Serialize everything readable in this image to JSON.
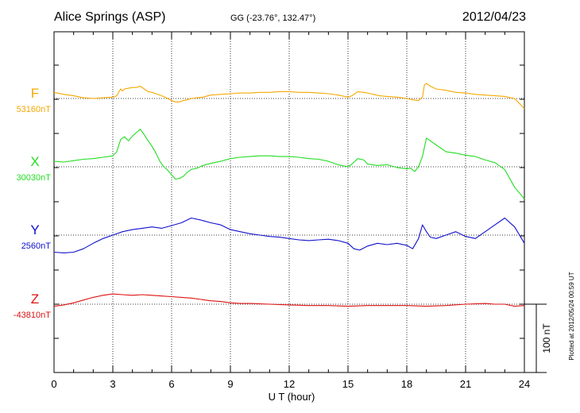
{
  "header": {
    "station": "Alice Springs (ASP)",
    "coords": "GG (-23.76°, 132.47°)",
    "date": "2012/04/23"
  },
  "side_note": "Plotted at 2012/05/24 00:59 UT",
  "scale_label": "100 nT",
  "chart_data": {
    "type": "line",
    "xlabel": "U T (hour)",
    "xlim": [
      0,
      24
    ],
    "x_ticks": [
      0,
      3,
      6,
      9,
      12,
      15,
      18,
      21,
      24
    ],
    "grid": true,
    "scale_bar_nT": 100,
    "series": [
      {
        "name": "F",
        "baseline_label": "53160nT",
        "baseline_nT": 53160,
        "color": "#f5a800",
        "x": [
          0,
          0.5,
          1,
          1.5,
          2,
          2.5,
          3,
          3.2,
          3.4,
          3.5,
          3.6,
          3.8,
          4,
          4.2,
          4.4,
          4.6,
          4.8,
          5,
          5.2,
          5.5,
          5.8,
          6,
          6.2,
          6.4,
          6.6,
          6.8,
          7,
          7.3,
          7.6,
          8,
          8.5,
          9,
          9.5,
          10,
          10.5,
          11,
          11.5,
          12,
          12.5,
          13,
          13.5,
          14,
          14.5,
          15,
          15.2,
          15.5,
          15.8,
          16,
          16.3,
          16.6,
          17,
          17.5,
          18,
          18.3,
          18.6,
          18.8,
          18.9,
          19,
          19.2,
          19.5,
          20,
          20.5,
          21,
          21.5,
          22,
          22.5,
          23,
          23.5,
          24
        ],
        "values": [
          9,
          6,
          4,
          1,
          0,
          1,
          2,
          4,
          14,
          11,
          14,
          15,
          16,
          16,
          18,
          14,
          10,
          9,
          7,
          4,
          0,
          -3,
          -5,
          -5,
          -3,
          -2,
          0,
          1,
          2,
          5,
          6,
          7,
          8,
          8,
          9,
          9,
          10,
          10,
          9,
          9,
          8,
          7,
          5,
          2,
          4,
          10,
          9,
          8,
          6,
          4,
          3,
          2,
          0,
          -2,
          -3,
          2,
          20,
          22,
          18,
          14,
          12,
          9,
          8,
          6,
          5,
          4,
          3,
          0,
          -15
        ]
      },
      {
        "name": "X",
        "baseline_label": "30030nT",
        "baseline_nT": 30030,
        "color": "#22dd22",
        "x": [
          0,
          0.5,
          1,
          1.5,
          2,
          2.5,
          3,
          3.2,
          3.4,
          3.6,
          3.8,
          4,
          4.2,
          4.4,
          4.6,
          4.8,
          5,
          5.2,
          5.4,
          5.6,
          5.8,
          6,
          6.2,
          6.4,
          6.6,
          6.8,
          7,
          7.3,
          7.6,
          8,
          8.5,
          9,
          9.5,
          10,
          10.5,
          11,
          11.5,
          12,
          12.5,
          13,
          13.5,
          14,
          14.5,
          15,
          15.2,
          15.5,
          15.8,
          16,
          16.5,
          17,
          17.5,
          18,
          18.2,
          18.4,
          18.6,
          18.8,
          19,
          19.2,
          19.5,
          20,
          20.5,
          21,
          21.5,
          22,
          22.5,
          23,
          23.5,
          24
        ],
        "values": [
          8,
          7,
          9,
          11,
          12,
          14,
          16,
          22,
          40,
          44,
          38,
          45,
          50,
          55,
          47,
          38,
          30,
          20,
          8,
          0,
          -5,
          -12,
          -18,
          -17,
          -14,
          -8,
          -4,
          -2,
          2,
          5,
          8,
          12,
          14,
          15,
          16,
          16,
          15,
          15,
          14,
          12,
          11,
          8,
          3,
          0,
          4,
          12,
          10,
          4,
          2,
          3,
          -1,
          -3,
          -2,
          -7,
          0,
          15,
          42,
          38,
          32,
          22,
          20,
          17,
          15,
          10,
          6,
          -4,
          -30,
          -47
        ]
      },
      {
        "name": "Y",
        "baseline_label": "2560nT",
        "baseline_nT": 2560,
        "color": "#1111cc",
        "x": [
          0,
          0.5,
          1,
          1.5,
          2,
          2.5,
          3,
          3.5,
          4,
          4.5,
          5,
          5.5,
          6,
          6.5,
          7,
          7.5,
          8,
          8.5,
          9,
          9.5,
          10,
          10.5,
          11,
          11.5,
          12,
          12.5,
          13,
          13.5,
          14,
          14.5,
          15,
          15.3,
          15.6,
          16,
          16.5,
          17,
          17.5,
          18,
          18.3,
          18.6,
          18.8,
          19,
          19.2,
          19.5,
          20,
          20.5,
          21,
          21.5,
          22,
          22.5,
          23,
          23.5,
          24
        ],
        "values": [
          -25,
          -26,
          -25,
          -20,
          -12,
          -5,
          0,
          5,
          8,
          10,
          12,
          10,
          14,
          18,
          25,
          22,
          18,
          15,
          8,
          5,
          2,
          0,
          -2,
          -3,
          -5,
          -7,
          -8,
          -7,
          -6,
          -8,
          -12,
          -20,
          -22,
          -16,
          -12,
          -14,
          -12,
          -15,
          -20,
          -5,
          15,
          5,
          -3,
          -5,
          0,
          5,
          -2,
          -5,
          5,
          15,
          25,
          12,
          -12
        ]
      },
      {
        "name": "Z",
        "baseline_label": "-43810nT",
        "baseline_nT": -43810,
        "color": "#dd1111",
        "x": [
          0,
          0.5,
          1,
          1.5,
          2,
          2.5,
          3,
          3.5,
          4,
          4.5,
          5,
          5.5,
          6,
          6.5,
          7,
          7.5,
          8,
          8.5,
          9,
          9.5,
          10,
          11,
          12,
          13,
          14,
          15,
          16,
          17,
          18,
          19,
          20,
          21,
          22,
          22.5,
          23,
          23.5,
          24
        ],
        "values": [
          -3,
          -1,
          2,
          6,
          10,
          13,
          15,
          14,
          13,
          14,
          13,
          12,
          11,
          10,
          9,
          7,
          5,
          4,
          2,
          1,
          1,
          0,
          -1,
          -2,
          -2,
          -3,
          -2,
          -2,
          -2,
          -3,
          -2,
          0,
          1,
          0,
          0,
          -3,
          -2
        ]
      }
    ]
  }
}
